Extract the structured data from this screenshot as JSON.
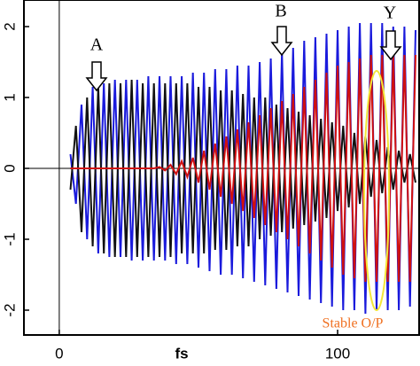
{
  "chart_data": {
    "type": "line",
    "xlabel": "fs",
    "annotations": [
      "A",
      "B",
      "Y",
      "Stable O/P"
    ],
    "x": [
      4,
      6,
      8,
      10,
      12,
      14,
      16,
      18,
      20,
      22,
      24,
      26,
      28,
      30,
      32,
      34,
      36,
      38,
      40,
      42,
      44,
      46,
      48,
      50,
      52,
      54,
      56,
      58,
      60,
      62,
      64,
      66,
      68,
      70,
      72,
      74,
      76,
      78,
      80,
      82,
      84,
      86,
      88,
      90,
      92,
      94,
      96,
      98,
      100,
      102,
      104,
      106,
      108,
      110,
      112,
      114,
      116,
      118,
      120,
      122,
      124,
      126,
      128
    ],
    "series": [
      {
        "color": "#1a1adc",
        "values": [
          0.2,
          -0.5,
          0.9,
          -1.0,
          1.15,
          -1.2,
          1.2,
          -1.25,
          1.25,
          -1.25,
          1.25,
          -1.3,
          1.25,
          -1.3,
          1.3,
          -1.3,
          1.3,
          -1.3,
          1.3,
          -1.35,
          1.3,
          -1.35,
          1.35,
          -1.4,
          1.35,
          -1.45,
          1.4,
          -1.5,
          1.4,
          -1.5,
          1.45,
          -1.55,
          1.45,
          -1.6,
          1.5,
          -1.65,
          1.55,
          -1.7,
          1.65,
          -1.75,
          1.7,
          -1.8,
          1.8,
          -1.85,
          1.85,
          -1.9,
          1.9,
          -1.95,
          1.95,
          -2.0,
          2.0,
          -2.0,
          2.05,
          -2.05,
          2.05,
          -2.0,
          2.05,
          -2.0,
          2.0,
          -2.0,
          2.0,
          -1.95,
          1.95
        ]
      },
      {
        "color": "#111111",
        "values": [
          -0.3,
          0.6,
          -0.9,
          1.0,
          -1.1,
          1.15,
          -1.2,
          1.2,
          -1.25,
          1.2,
          -1.25,
          1.25,
          -1.25,
          1.2,
          -1.25,
          1.2,
          -1.25,
          1.2,
          -1.25,
          1.2,
          -1.2,
          1.2,
          -1.2,
          1.15,
          -1.2,
          1.15,
          -1.15,
          1.1,
          -1.15,
          1.1,
          -1.1,
          1.05,
          -1.1,
          1.0,
          -1.0,
          1.0,
          -0.95,
          0.9,
          -0.9,
          0.85,
          -0.85,
          0.8,
          -0.8,
          0.75,
          -0.75,
          0.7,
          -0.7,
          0.65,
          -0.6,
          0.6,
          -0.55,
          0.5,
          -0.5,
          0.45,
          -0.4,
          0.4,
          -0.35,
          0.3,
          -0.3,
          0.25,
          -0.2,
          0.2,
          -0.2
        ]
      },
      {
        "color": "#d01010",
        "values": [
          0,
          0,
          0,
          0,
          0,
          0,
          0,
          0,
          0,
          0,
          0,
          0,
          0,
          0,
          0,
          0,
          0.02,
          -0.03,
          0.05,
          -0.08,
          0.1,
          -0.12,
          0.15,
          -0.2,
          0.25,
          -0.3,
          0.35,
          -0.4,
          0.45,
          -0.5,
          0.55,
          -0.6,
          0.65,
          -0.7,
          0.75,
          -0.8,
          0.85,
          -0.9,
          0.95,
          -1.0,
          1.05,
          -1.1,
          1.15,
          -1.2,
          1.25,
          -1.3,
          1.35,
          -1.4,
          1.45,
          -1.5,
          1.5,
          -1.55,
          1.55,
          -1.6,
          1.6,
          -1.6,
          1.6,
          -1.6,
          1.6,
          -1.6,
          1.6,
          -1.6,
          1.6
        ]
      }
    ],
    "xlim": [
      -12.7,
      129.6
    ],
    "ylim": [
      -2.35,
      2.375
    ],
    "xticks": [
      0,
      100
    ],
    "yticks": [
      -2,
      -1,
      0,
      1,
      2
    ]
  }
}
